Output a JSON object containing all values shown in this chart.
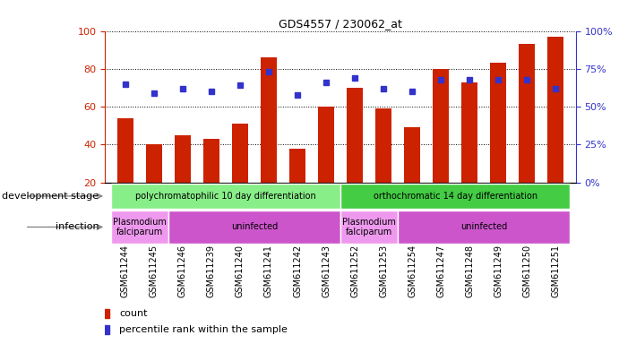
{
  "title": "GDS4557 / 230062_at",
  "samples": [
    "GSM611244",
    "GSM611245",
    "GSM611246",
    "GSM611239",
    "GSM611240",
    "GSM611241",
    "GSM611242",
    "GSM611243",
    "GSM611252",
    "GSM611253",
    "GSM611254",
    "GSM611247",
    "GSM611248",
    "GSM611249",
    "GSM611250",
    "GSM611251"
  ],
  "counts": [
    54,
    40,
    45,
    43,
    51,
    86,
    38,
    60,
    70,
    59,
    49,
    80,
    73,
    83,
    93,
    97
  ],
  "percentiles": [
    65,
    59,
    62,
    60,
    64,
    73,
    58,
    66,
    69,
    62,
    60,
    68,
    68,
    68,
    68,
    62
  ],
  "ylim_left": [
    20,
    100
  ],
  "ylim_right": [
    0,
    100
  ],
  "yticks_left": [
    20,
    40,
    60,
    80,
    100
  ],
  "yticks_right": [
    0,
    25,
    50,
    75,
    100
  ],
  "bar_color": "#cc2200",
  "dot_color": "#3333cc",
  "background_color": "#ffffff",
  "dev_stage_groups": [
    {
      "label": "polychromatophilic 10 day differentiation",
      "start": 0,
      "end": 7,
      "color": "#88ee88"
    },
    {
      "label": "orthochromatic 14 day differentiation",
      "start": 8,
      "end": 15,
      "color": "#44cc44"
    }
  ],
  "infection_groups": [
    {
      "label": "Plasmodium\nfalciparum",
      "start": 0,
      "end": 1,
      "color": "#ee99ee"
    },
    {
      "label": "uninfected",
      "start": 2,
      "end": 7,
      "color": "#cc55cc"
    },
    {
      "label": "Plasmodium\nfalciparum",
      "start": 8,
      "end": 9,
      "color": "#ee99ee"
    },
    {
      "label": "uninfected",
      "start": 10,
      "end": 15,
      "color": "#cc55cc"
    }
  ],
  "dev_stage_label": "development stage",
  "infection_label": "infection",
  "legend_count": "count",
  "legend_percentile": "percentile rank within the sample"
}
